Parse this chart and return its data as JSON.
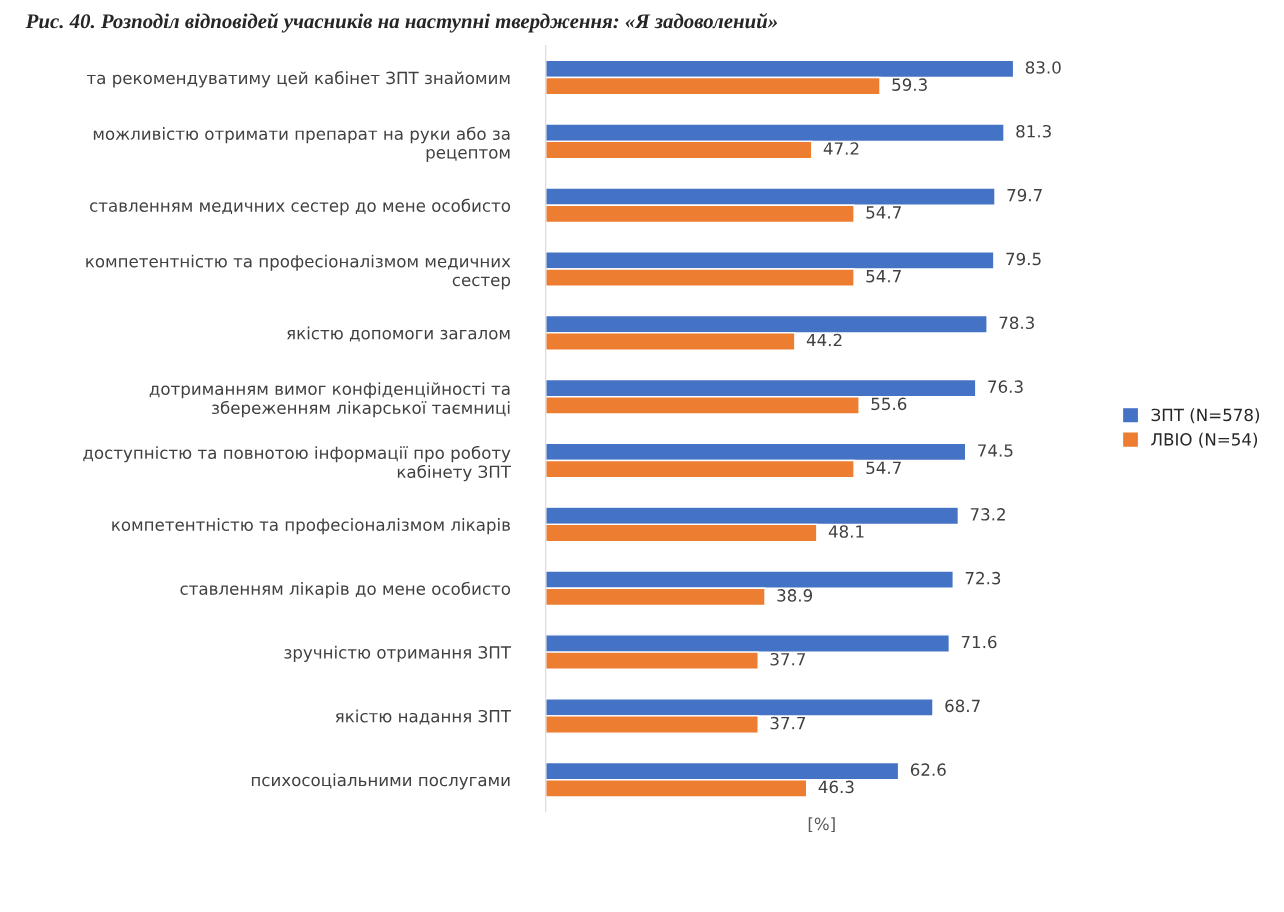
{
  "chart_data": {
    "type": "bar",
    "orientation": "horizontal",
    "title": "Рис. 40. Розподіл відповідей учасників на наступні твердження: «Я задоволений»",
    "xlabel": "[%]",
    "categories": [
      "та рекомендуватиму цей кабінет ЗПТ знайомим",
      "можливістю отримати препарат на руки або за\nрецептом",
      "ставленням медичних сестер до мене особисто",
      "компетентністю та професіоналізмом медичних\nсестер",
      "якістю допомоги загалом",
      "дотриманням вимог конфіденційності та\nзбереженням лікарської таємниці",
      "доступністю та повнотою інформації про роботу\nкабінету ЗПТ",
      "компетентністю та професіоналізмом лікарів",
      "ставленням лікарів до мене особисто",
      "зручністю отримання ЗПТ",
      "якістю надання ЗПТ",
      "психосоціальними послугами"
    ],
    "series": [
      {
        "name": "ЗПТ (N=578)",
        "color": "#4472c4",
        "values": [
          83.0,
          81.3,
          79.7,
          79.5,
          78.3,
          76.3,
          74.5,
          73.2,
          72.3,
          71.6,
          68.7,
          62.6
        ],
        "value_labels": [
          "83.0",
          "81.3",
          "79.7",
          "79.5",
          "78.3",
          "76.3",
          "74.5",
          "73.2",
          "72.3",
          "71.6",
          "68.7",
          "62.6"
        ]
      },
      {
        "name": "ЛВІО (N=54)",
        "color": "#ed7d31",
        "values": [
          59.3,
          47.2,
          54.7,
          54.7,
          44.2,
          55.6,
          54.7,
          48.1,
          38.9,
          37.7,
          37.7,
          46.3
        ],
        "value_labels": [
          "59.3",
          "47.2",
          "54.7",
          "54.7",
          "44.2",
          "55.6",
          "54.7",
          "48.1",
          "38.9",
          "37.7",
          "37.7",
          "46.3"
        ]
      }
    ],
    "legend": "right",
    "grid": false,
    "tick_labels": "y"
  }
}
